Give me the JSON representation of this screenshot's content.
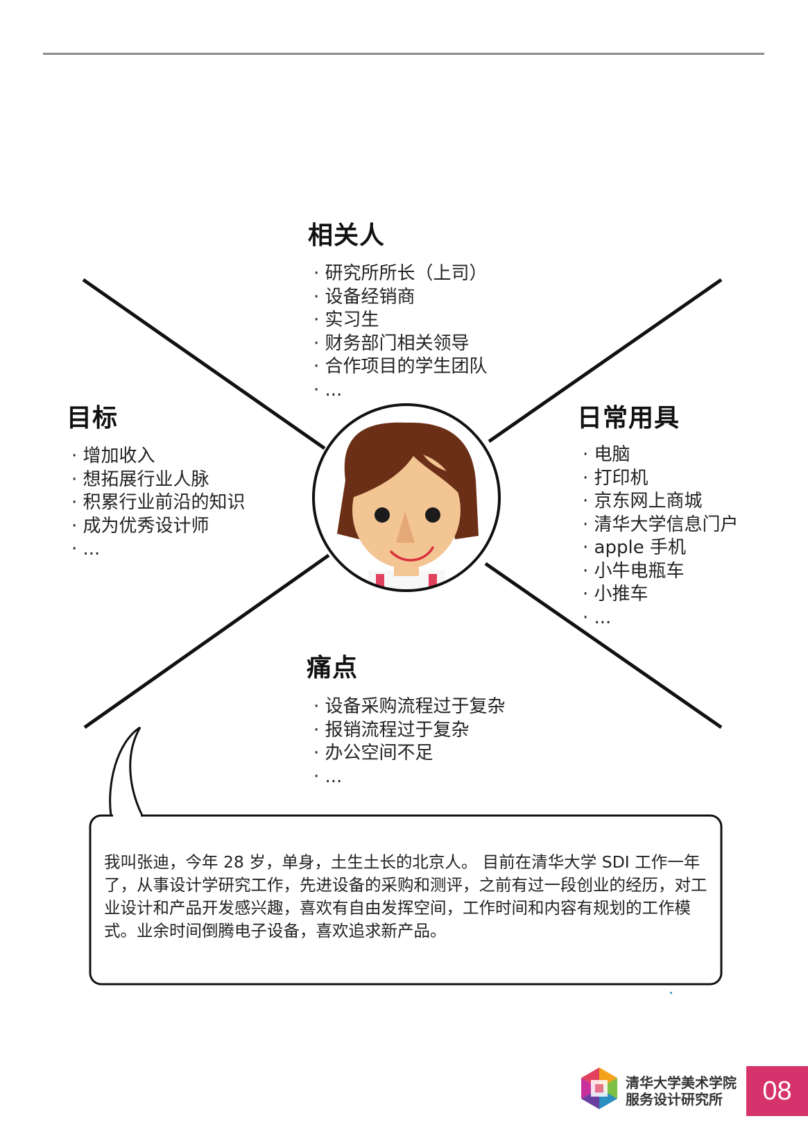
{
  "stakeholders": {
    "title": "相关人",
    "items": [
      "研究所所长（上司）",
      "设备经销商",
      "实习生",
      "财务部门相关领导",
      "合作项目的学生团队",
      "..."
    ]
  },
  "goals": {
    "title": "目标",
    "items": [
      "增加收入",
      "想拓展行业人脉",
      "积累行业前沿的知识",
      "成为优秀设计师",
      "..."
    ]
  },
  "daily_tools": {
    "title": "日常用具",
    "items": [
      "电脑",
      "打印机",
      "京东网上商城",
      "清华大学信息门户",
      "apple 手机",
      "小牛电瓶车",
      "小推车",
      "..."
    ]
  },
  "pain_points": {
    "title": "痛点",
    "items": [
      "设备采购流程过于复杂",
      "报销流程过于复杂",
      "办公空间不足",
      "..."
    ]
  },
  "bio": "我叫张迪，今年 28 岁，单身，土生土长的北京人。 目前在清华大学 SDI 工作一年了，从事设计学研究工作，先进设备的采购和测评，之前有过一段创业的经历，对工业设计和产品开发感兴趣，喜欢有自由发挥空间，工作时间和内容有规划的工作模式。业余时间倒腾电子设备，喜欢追求新产品。",
  "footer": {
    "org_line1": "清华大学美术学院",
    "org_line2": "服务设计研究所",
    "page_number": "08",
    "accent_color": "#d6336c"
  }
}
